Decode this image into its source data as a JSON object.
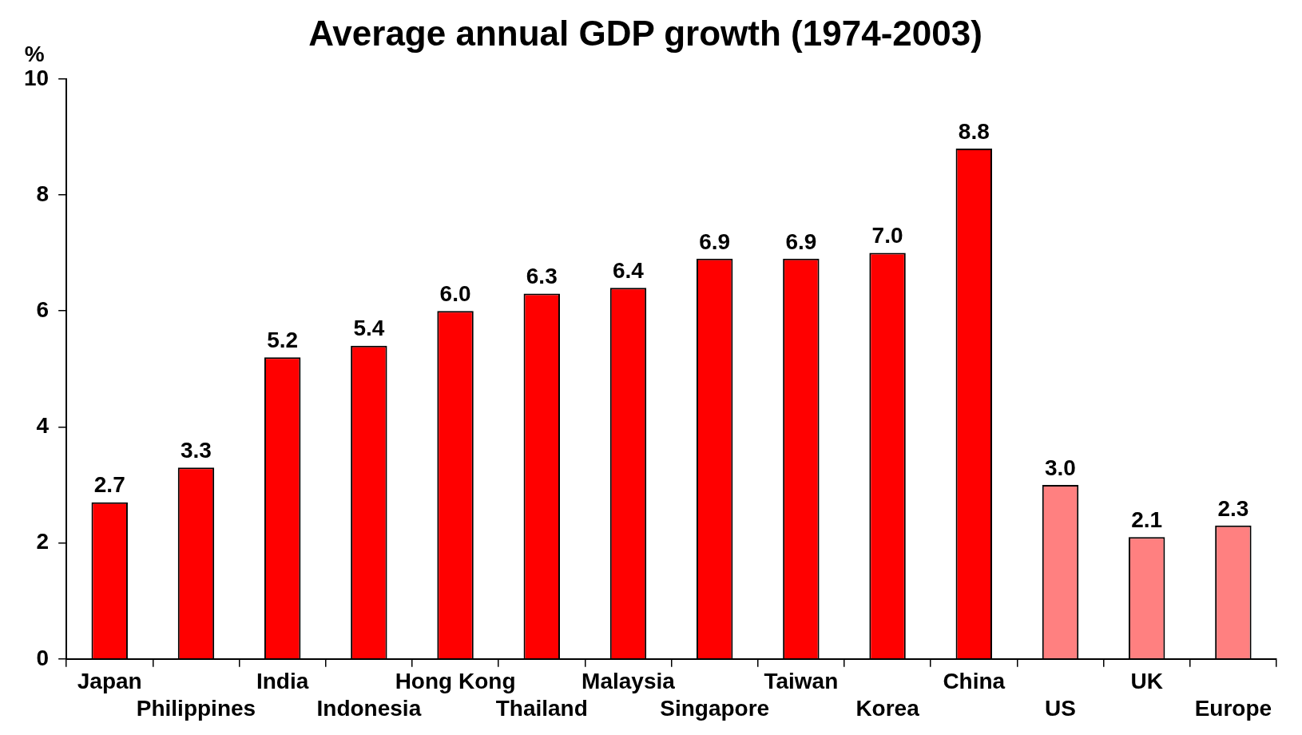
{
  "chart_data": {
    "type": "bar",
    "title": "Average annual GDP growth (1974-2003)",
    "ylabel": "%",
    "categories": [
      "Japan",
      "Philippines",
      "India",
      "Indonesia",
      "Hong Kong",
      "Thailand",
      "Malaysia",
      "Singapore",
      "Taiwan",
      "Korea",
      "China",
      "US",
      "UK",
      "Europe"
    ],
    "values": [
      2.7,
      3.3,
      5.2,
      5.4,
      6.0,
      6.3,
      6.4,
      6.9,
      6.9,
      7.0,
      8.8,
      3.0,
      2.1,
      2.3
    ],
    "colors": [
      "#ff0000",
      "#ff0000",
      "#ff0000",
      "#ff0000",
      "#ff0000",
      "#ff0000",
      "#ff0000",
      "#ff0000",
      "#ff0000",
      "#ff0000",
      "#ff0000",
      "#ff8080",
      "#ff8080",
      "#ff8080"
    ],
    "ylim": [
      0,
      10
    ],
    "yticks": [
      0,
      2,
      4,
      6,
      8,
      10
    ],
    "value_labels": [
      "2.7",
      "3.3",
      "5.2",
      "5.4",
      "6.0",
      "6.3",
      "6.4",
      "6.9",
      "6.9",
      "7.0",
      "8.8",
      "3.0",
      "2.1",
      "2.3"
    ],
    "grid": false,
    "legend": false
  }
}
